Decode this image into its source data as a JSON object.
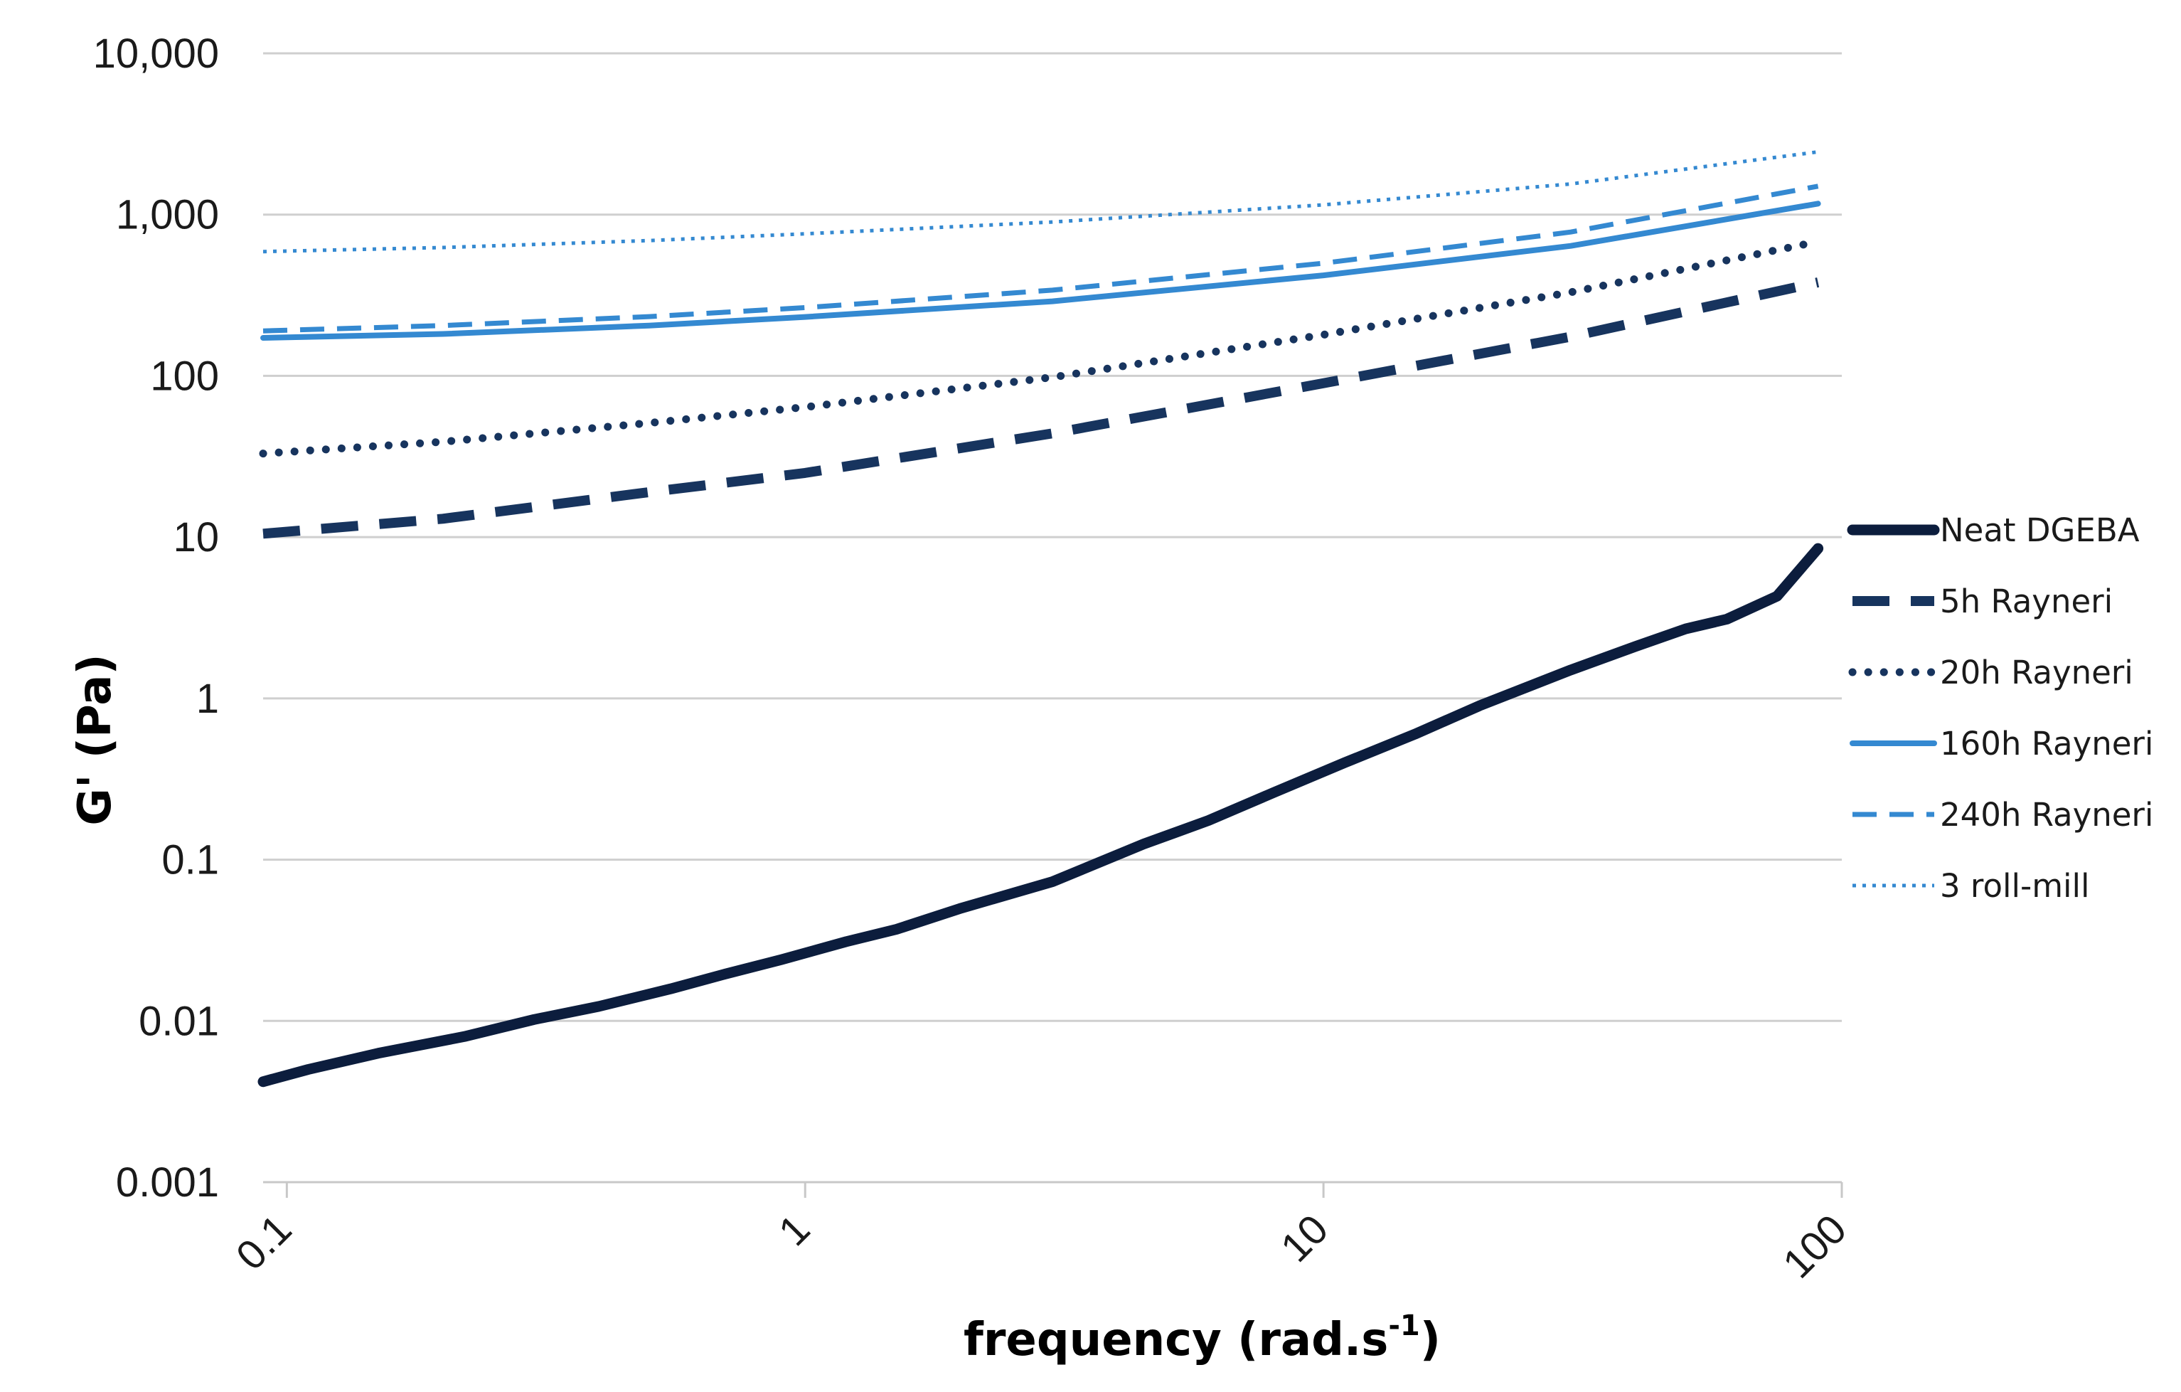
{
  "chart_data": {
    "type": "line",
    "title": "",
    "xlabel": {
      "main": "frequency (rad.s",
      "sup": "-1",
      "close": ")"
    },
    "ylabel": "G' (Pa)",
    "x_scale": "log",
    "y_scale": "log",
    "xlim": [
      0.09,
      100
    ],
    "ylim": [
      0.001,
      10000
    ],
    "x_ticks": [
      {
        "value": 0.1,
        "label": "0.1"
      },
      {
        "value": 1,
        "label": "1"
      },
      {
        "value": 10,
        "label": "10"
      },
      {
        "value": 100,
        "label": "100"
      }
    ],
    "y_ticks": [
      {
        "value": 0.001,
        "label": "0.001"
      },
      {
        "value": 0.01,
        "label": "0.01"
      },
      {
        "value": 0.1,
        "label": "0.1"
      },
      {
        "value": 1,
        "label": "1"
      },
      {
        "value": 10,
        "label": "10"
      },
      {
        "value": 100,
        "label": "100"
      },
      {
        "value": 1000,
        "label": "1,000"
      },
      {
        "value": 10000,
        "label": "10,000"
      }
    ],
    "grid": "horizontal major",
    "legend_position": "right",
    "series": [
      {
        "name": "Neat DGEBA",
        "color": "#0c1d3d",
        "style": "solid-thick",
        "x": [
          0.09,
          0.11,
          0.15,
          0.22,
          0.3,
          0.4,
          0.55,
          0.7,
          0.9,
          1.2,
          1.5,
          2,
          3,
          4.5,
          6,
          8,
          11,
          15,
          20,
          30,
          40,
          50,
          60,
          75,
          90
        ],
        "y": [
          0.0042,
          0.005,
          0.0063,
          0.008,
          0.0102,
          0.0123,
          0.0158,
          0.0195,
          0.024,
          0.031,
          0.037,
          0.05,
          0.073,
          0.125,
          0.175,
          0.26,
          0.4,
          0.6,
          0.9,
          1.5,
          2.1,
          2.7,
          3.1,
          4.3,
          8.5
        ]
      },
      {
        "name": "5h Rayneri",
        "color": "#17345e",
        "style": "dash-long",
        "x": [
          0.09,
          0.2,
          0.5,
          1,
          3,
          10,
          30,
          90
        ],
        "y": [
          10.5,
          13,
          19,
          25,
          44,
          90,
          175,
          380
        ]
      },
      {
        "name": "20h Rayneri",
        "color": "#17345e",
        "style": "dot-round",
        "x": [
          0.09,
          0.2,
          0.5,
          1,
          3,
          10,
          30,
          90
        ],
        "y": [
          33,
          39,
          51,
          64,
          98,
          180,
          330,
          680
        ]
      },
      {
        "name": "160h Rayneri",
        "color": "#3489d1",
        "style": "solid",
        "x": [
          0.09,
          0.2,
          0.5,
          1,
          3,
          10,
          30,
          90
        ],
        "y": [
          172,
          182,
          205,
          232,
          290,
          420,
          640,
          1170
        ]
      },
      {
        "name": "240h Rayneri",
        "color": "#3489d1",
        "style": "dash-medium",
        "x": [
          0.09,
          0.2,
          0.5,
          1,
          3,
          10,
          30,
          90
        ],
        "y": [
          190,
          205,
          233,
          265,
          340,
          500,
          780,
          1500
        ]
      },
      {
        "name": "3 roll-mill",
        "color": "#3489d1",
        "style": "dot-fine",
        "x": [
          0.09,
          0.2,
          0.5,
          1,
          3,
          10,
          30,
          90
        ],
        "y": [
          590,
          625,
          690,
          760,
          900,
          1150,
          1550,
          2450
        ]
      }
    ]
  }
}
